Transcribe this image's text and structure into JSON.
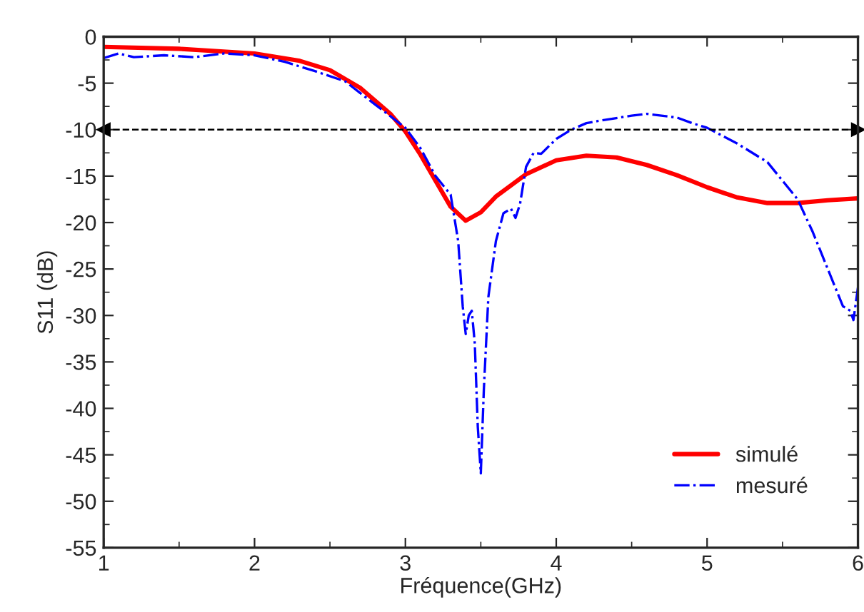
{
  "chart_data": {
    "type": "line",
    "xlabel": "Fréquence(GHz)",
    "ylabel": "S11 (dB)",
    "xlim": [
      1,
      6
    ],
    "ylim": [
      -55,
      0
    ],
    "xticks": [
      1,
      2,
      3,
      4,
      5,
      6
    ],
    "yticks": [
      -55,
      -50,
      -45,
      -40,
      -35,
      -30,
      -25,
      -20,
      -15,
      -10,
      -5,
      0
    ],
    "legend": "bottom right",
    "grid": false,
    "ref_lines": [
      {
        "axis": "y",
        "value": -10,
        "color": "#000000",
        "line_style": "dashed"
      }
    ],
    "series": [
      {
        "name": "simulé",
        "color": "#ff0000",
        "line_style": "solid",
        "x": [
          1,
          1.5,
          2,
          2.3,
          2.5,
          2.7,
          2.9,
          3.0,
          3.1,
          3.2,
          3.3,
          3.4,
          3.5,
          3.6,
          3.8,
          4.0,
          4.2,
          4.4,
          4.6,
          4.8,
          5.0,
          5.2,
          5.4,
          5.6,
          5.8,
          6.0
        ],
        "values": [
          -1.1,
          -1.3,
          -1.8,
          -2.6,
          -3.6,
          -5.5,
          -8.3,
          -10.2,
          -12.7,
          -15.5,
          -18.3,
          -19.8,
          -18.9,
          -17.2,
          -14.8,
          -13.3,
          -12.8,
          -13.0,
          -13.8,
          -14.9,
          -16.2,
          -17.3,
          -17.9,
          -17.9,
          -17.6,
          -17.4
        ]
      },
      {
        "name": "mesuré",
        "color": "#0000ff",
        "line_style": "dashdot",
        "x": [
          1,
          1.1,
          1.2,
          1.4,
          1.6,
          1.8,
          2.0,
          2.2,
          2.4,
          2.6,
          2.8,
          3.0,
          3.1,
          3.2,
          3.3,
          3.35,
          3.38,
          3.4,
          3.42,
          3.44,
          3.46,
          3.48,
          3.5,
          3.52,
          3.55,
          3.6,
          3.65,
          3.7,
          3.73,
          3.76,
          3.8,
          3.85,
          3.9,
          4.0,
          4.1,
          4.2,
          4.3,
          4.5,
          4.6,
          4.8,
          4.9,
          5.0,
          5.2,
          5.4,
          5.5,
          5.6,
          5.7,
          5.8,
          5.9,
          5.95,
          5.97,
          6.0
        ],
        "values": [
          -2.3,
          -1.8,
          -2.2,
          -2.0,
          -2.2,
          -1.8,
          -2.0,
          -2.7,
          -3.7,
          -4.8,
          -7.3,
          -9.8,
          -12.0,
          -15.0,
          -17.0,
          -22,
          -29,
          -32,
          -30,
          -29.5,
          -33,
          -42,
          -47,
          -38,
          -28,
          -22,
          -19,
          -18.5,
          -19.5,
          -18,
          -14,
          -12.5,
          -12.6,
          -11,
          -10,
          -9.3,
          -9,
          -8.5,
          -8.3,
          -8.7,
          -9.3,
          -9.8,
          -11.5,
          -13.5,
          -15.5,
          -17.5,
          -21,
          -25,
          -29,
          -29.5,
          -30.5,
          -27
        ]
      }
    ]
  }
}
